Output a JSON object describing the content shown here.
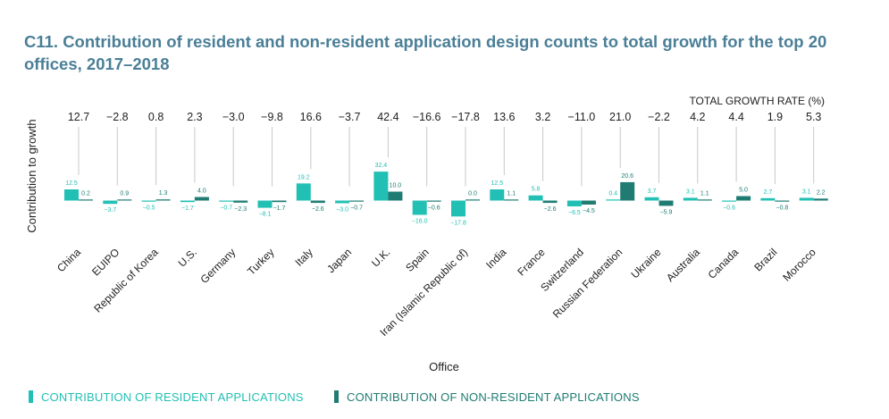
{
  "title": "C11. Contribution of resident and non-resident application design counts to total growth for the top 20 offices, 2017–2018",
  "legend": {
    "resident": "CONTRIBUTION OF RESIDENT APPLICATIONS",
    "nonresident": "CONTRIBUTION OF NON-RESIDENT APPLICATIONS"
  },
  "colors": {
    "resident": "#22c0b4",
    "nonresident": "#1f7c73",
    "guide": "#c8c8c8",
    "title": "#4a7f97"
  },
  "chart_data": {
    "type": "bar",
    "ylabel": "Contribution to growth",
    "xlabel": "Office",
    "growth_header": "TOTAL GROWTH RATE (%)",
    "categories": [
      "China",
      "EUIPO",
      "Republic of Korea",
      "U.S.",
      "Germany",
      "Turkey",
      "Italy",
      "Japan",
      "U.K.",
      "Spain",
      "Iran (Islamic Republic of)",
      "India",
      "France",
      "Switzerland",
      "Russian Federation",
      "Ukraine",
      "Australia",
      "Canada",
      "Brazil",
      "Morocco"
    ],
    "total_growth": [
      "12.7",
      "−2.8",
      "0.8",
      "2.3",
      "−3.0",
      "−9.8",
      "16.6",
      "−3.7",
      "42.4",
      "−16.6",
      "−17.8",
      "13.6",
      "3.2",
      "−11.0",
      "21.0",
      "−2.2",
      "4.2",
      "4.4",
      "1.9",
      "5.3"
    ],
    "series": [
      {
        "name": "CONTRIBUTION OF RESIDENT APPLICATIONS",
        "values": [
          12.5,
          -3.7,
          -0.5,
          -1.7,
          -0.7,
          -8.1,
          19.2,
          -3.0,
          32.4,
          -16.0,
          -17.8,
          12.5,
          5.8,
          -6.5,
          0.4,
          3.7,
          3.1,
          -0.6,
          2.7,
          3.1
        ],
        "labels": [
          "12.5",
          "−3.7",
          "−0.5",
          "−1.7",
          "−0.7",
          "−8.1",
          "19.2",
          "−3.0",
          "32.4",
          "−16.0",
          "−17.8",
          "12.5",
          "5.8",
          "−6.5",
          "0.4",
          "3.7",
          "3.1",
          "−0.6",
          "2.7",
          "3.1"
        ]
      },
      {
        "name": "CONTRIBUTION OF NON-RESIDENT APPLICATIONS",
        "values": [
          0.2,
          0.9,
          1.3,
          4.0,
          -2.3,
          -1.7,
          -2.6,
          -0.7,
          10.0,
          -0.6,
          0.0,
          1.1,
          -2.6,
          -4.5,
          20.6,
          -5.9,
          1.1,
          5.0,
          -0.8,
          2.2
        ],
        "labels": [
          "0.2",
          "0.9",
          "1.3",
          "4.0",
          "−2.3",
          "−1.7",
          "−2.6",
          "−0.7",
          "10.0",
          "−0.6",
          "0.0",
          "1.1",
          "−2.6",
          "−4.5",
          "20.6",
          "−5.9",
          "1.1",
          "5.0",
          "−0.8",
          "2.2"
        ]
      }
    ],
    "grid": false,
    "legend_position": "bottom-left"
  }
}
